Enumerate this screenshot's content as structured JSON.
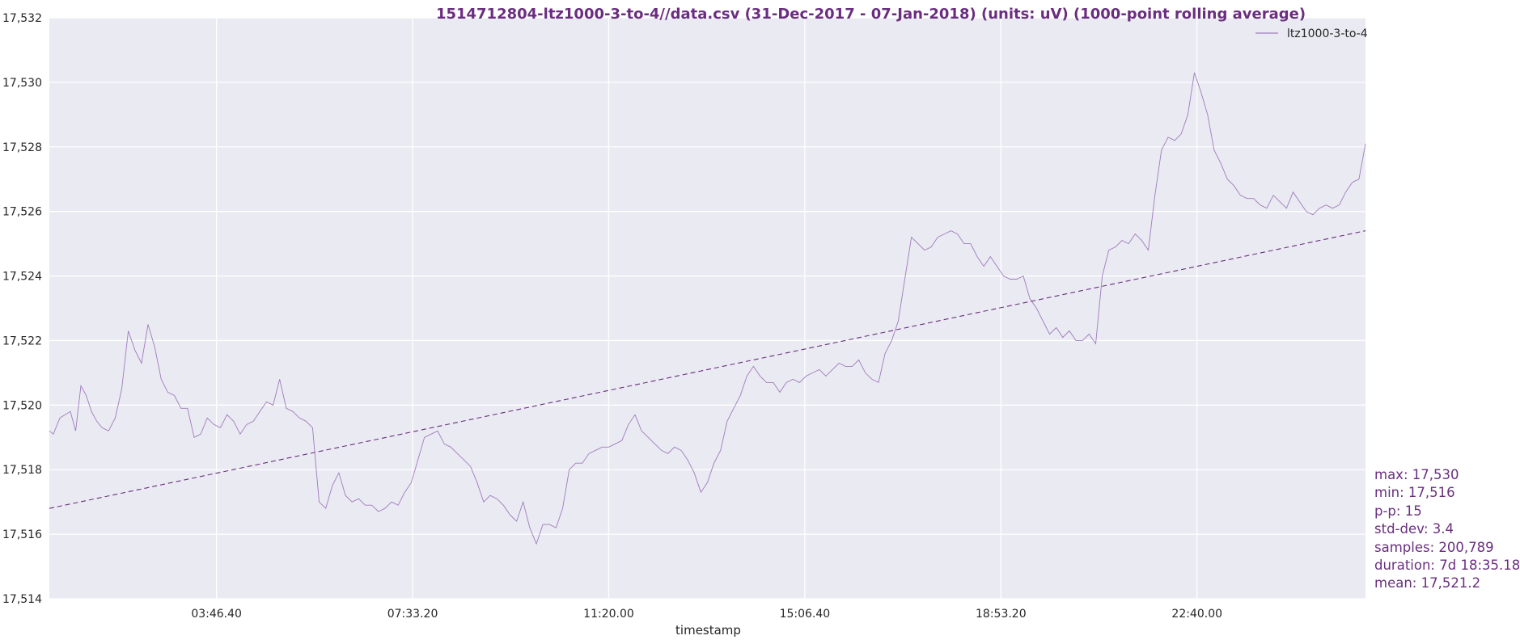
{
  "chart_data": {
    "type": "line",
    "title": "1514712804-ltz1000-3-to-4//data.csv (31-Dec-2017 - 07-Jan-2018) (units: uV) (1000-point rolling average)",
    "xlabel": "timestamp",
    "ylabel": "",
    "ylim": [
      17514,
      17532
    ],
    "yticks": [
      "17,514",
      "17,516",
      "17,518",
      "17,520",
      "17,522",
      "17,524",
      "17,526",
      "17,528",
      "17,530",
      "17,532"
    ],
    "xticks": [
      "03:46.40",
      "07:33.20",
      "11:20.00",
      "15:06.40",
      "18:53.20",
      "22:40.00"
    ],
    "xtick_positions": [
      0.127,
      0.276,
      0.425,
      0.574,
      0.723,
      0.872
    ],
    "grid": true,
    "legend_position": "top-right",
    "series": [
      {
        "name": "ltz1000-3-to-4",
        "color": "#a07bbd",
        "x": [
          0.0,
          0.003,
          0.008,
          0.012,
          0.016,
          0.02,
          0.024,
          0.028,
          0.032,
          0.036,
          0.04,
          0.045,
          0.05,
          0.055,
          0.06,
          0.065,
          0.07,
          0.075,
          0.08,
          0.085,
          0.09,
          0.095,
          0.1,
          0.105,
          0.11,
          0.115,
          0.12,
          0.125,
          0.13,
          0.135,
          0.14,
          0.145,
          0.15,
          0.155,
          0.16,
          0.165,
          0.17,
          0.175,
          0.18,
          0.185,
          0.19,
          0.195,
          0.2,
          0.205,
          0.21,
          0.215,
          0.22,
          0.225,
          0.23,
          0.235,
          0.24,
          0.245,
          0.25,
          0.255,
          0.26,
          0.265,
          0.27,
          0.275,
          0.28,
          0.285,
          0.29,
          0.295,
          0.3,
          0.305,
          0.31,
          0.315,
          0.32,
          0.325,
          0.33,
          0.335,
          0.34,
          0.345,
          0.35,
          0.355,
          0.36,
          0.365,
          0.37,
          0.375,
          0.38,
          0.385,
          0.39,
          0.395,
          0.4,
          0.405,
          0.41,
          0.415,
          0.42,
          0.425,
          0.43,
          0.435,
          0.44,
          0.445,
          0.45,
          0.455,
          0.46,
          0.465,
          0.47,
          0.475,
          0.48,
          0.485,
          0.49,
          0.495,
          0.5,
          0.505,
          0.51,
          0.515,
          0.52,
          0.525,
          0.53,
          0.535,
          0.54,
          0.545,
          0.55,
          0.555,
          0.56,
          0.565,
          0.57,
          0.575,
          0.58,
          0.585,
          0.59,
          0.595,
          0.6,
          0.605,
          0.61,
          0.615,
          0.62,
          0.625,
          0.63,
          0.635,
          0.64,
          0.645,
          0.65,
          0.655,
          0.66,
          0.665,
          0.67,
          0.675,
          0.68,
          0.685,
          0.69,
          0.695,
          0.7,
          0.705,
          0.71,
          0.715,
          0.72,
          0.725,
          0.73,
          0.735,
          0.74,
          0.745,
          0.75,
          0.755,
          0.76,
          0.765,
          0.77,
          0.775,
          0.78,
          0.785,
          0.79,
          0.795,
          0.8,
          0.805,
          0.81,
          0.815,
          0.82,
          0.825,
          0.83,
          0.835,
          0.84,
          0.845,
          0.85,
          0.855,
          0.86,
          0.865,
          0.87,
          0.875,
          0.88,
          0.885,
          0.89,
          0.895,
          0.9,
          0.905,
          0.91,
          0.915,
          0.92,
          0.925,
          0.93,
          0.935,
          0.94,
          0.945,
          0.95,
          0.955,
          0.96,
          0.965,
          0.97,
          0.975,
          0.98,
          0.985,
          0.99,
          0.995,
          1.0
        ],
        "values": [
          17519.2,
          17519.1,
          17519.6,
          17519.7,
          17519.8,
          17519.2,
          17520.6,
          17520.3,
          17519.8,
          17519.5,
          17519.3,
          17519.2,
          17519.6,
          17520.5,
          17522.3,
          17521.7,
          17521.3,
          17522.5,
          17521.8,
          17520.8,
          17520.4,
          17520.3,
          17519.9,
          17519.9,
          17519.0,
          17519.1,
          17519.6,
          17519.4,
          17519.3,
          17519.7,
          17519.5,
          17519.1,
          17519.4,
          17519.5,
          17519.8,
          17520.1,
          17520.0,
          17520.8,
          17519.9,
          17519.8,
          17519.6,
          17519.5,
          17519.3,
          17517.0,
          17516.8,
          17517.5,
          17517.9,
          17517.2,
          17517.0,
          17517.1,
          17516.9,
          17516.9,
          17516.7,
          17516.8,
          17517.0,
          17516.9,
          17517.3,
          17517.6,
          17518.3,
          17519.0,
          17519.1,
          17519.2,
          17518.8,
          17518.7,
          17518.5,
          17518.3,
          17518.1,
          17517.6,
          17517.0,
          17517.2,
          17517.1,
          17516.9,
          17516.6,
          17516.4,
          17517.0,
          17516.2,
          17515.7,
          17516.3,
          17516.3,
          17516.2,
          17516.8,
          17518.0,
          17518.2,
          17518.2,
          17518.5,
          17518.6,
          17518.7,
          17518.7,
          17518.8,
          17518.9,
          17519.4,
          17519.7,
          17519.2,
          17519.0,
          17518.8,
          17518.6,
          17518.5,
          17518.7,
          17518.6,
          17518.3,
          17517.9,
          17517.3,
          17517.6,
          17518.2,
          17518.6,
          17519.5,
          17519.9,
          17520.3,
          17520.9,
          17521.2,
          17520.9,
          17520.7,
          17520.7,
          17520.4,
          17520.7,
          17520.8,
          17520.7,
          17520.9,
          17521.0,
          17521.1,
          17520.9,
          17521.1,
          17521.3,
          17521.2,
          17521.2,
          17521.4,
          17521.0,
          17520.8,
          17520.7,
          17521.6,
          17522.0,
          17522.6,
          17523.9,
          17525.2,
          17525.0,
          17524.8,
          17524.9,
          17525.2,
          17525.3,
          17525.4,
          17525.3,
          17525.0,
          17525.0,
          17524.6,
          17524.3,
          17524.6,
          17524.3,
          17524.0,
          17523.9,
          17523.9,
          17524.0,
          17523.3,
          17523.0,
          17522.6,
          17522.2,
          17522.4,
          17522.1,
          17522.3,
          17522.0,
          17522.0,
          17522.2,
          17521.9,
          17524.0,
          17524.8,
          17524.9,
          17525.1,
          17525.0,
          17525.3,
          17525.1,
          17524.8,
          17526.5,
          17527.9,
          17528.3,
          17528.2,
          17528.4,
          17529.0,
          17530.3,
          17529.7,
          17529.0,
          17527.9,
          17527.5,
          17527.0,
          17526.8,
          17526.5,
          17526.4,
          17526.4,
          17526.2,
          17526.1,
          17526.5,
          17526.3,
          17526.1,
          17526.6,
          17526.3,
          17526.0,
          17525.9,
          17526.1,
          17526.2,
          17526.1,
          17526.2,
          17526.6,
          17526.9,
          17527.0,
          17528.1
        ]
      },
      {
        "name": "",
        "color": "#6a2e7f",
        "style": "dashed",
        "x": [
          0.0,
          1.0
        ],
        "values": [
          17516.8,
          17525.4
        ]
      }
    ],
    "stats": [
      "max: 17,530",
      "min: 17,516",
      "p-p: 15",
      "std-dev: 3.4",
      "samples: 200,789",
      "duration: 7d 18:35.18",
      "mean: 17,521.2"
    ],
    "colors": {
      "plot_background": "#eaeaf2",
      "grid": "#ffffff",
      "accent": "#6a2e7f"
    }
  }
}
